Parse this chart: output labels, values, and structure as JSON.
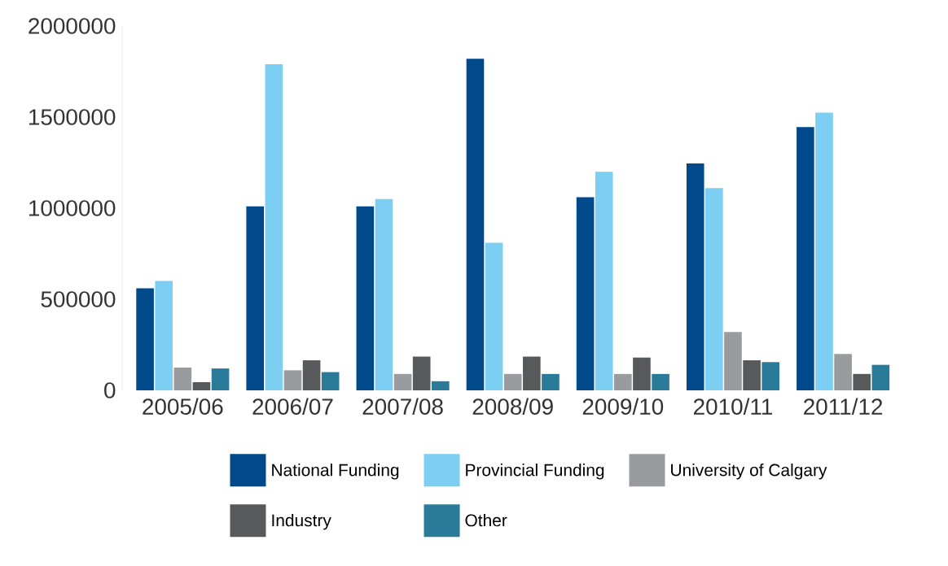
{
  "chart_data": {
    "type": "bar",
    "categories": [
      "2005/06",
      "2006/07",
      "2007/08",
      "2008/09",
      "2009/10",
      "2010/11",
      "2011/12"
    ],
    "series": [
      {
        "name": "National Funding",
        "color": "#004a8c",
        "values": [
          560000,
          1010000,
          1010000,
          1820000,
          1060000,
          1245000,
          1445000
        ]
      },
      {
        "name": "Provincial Funding",
        "color": "#7ccff2",
        "values": [
          600000,
          1790000,
          1050000,
          810000,
          1200000,
          1110000,
          1525000
        ]
      },
      {
        "name": "University of Calgary",
        "color": "#9a9b9f",
        "values": [
          125000,
          110000,
          90000,
          90000,
          90000,
          320000,
          200000
        ]
      },
      {
        "name": "Industry",
        "color": "#58595b",
        "values": [
          45000,
          165000,
          185000,
          185000,
          180000,
          165000,
          90000
        ]
      },
      {
        "name": "Other",
        "color": "#2a7a9a",
        "values": [
          120000,
          100000,
          50000,
          90000,
          90000,
          155000,
          140000
        ]
      }
    ],
    "ylim": [
      0,
      2000000
    ],
    "yticks": [
      0,
      500000,
      1000000,
      1500000,
      2000000
    ],
    "legend": "bottom"
  }
}
